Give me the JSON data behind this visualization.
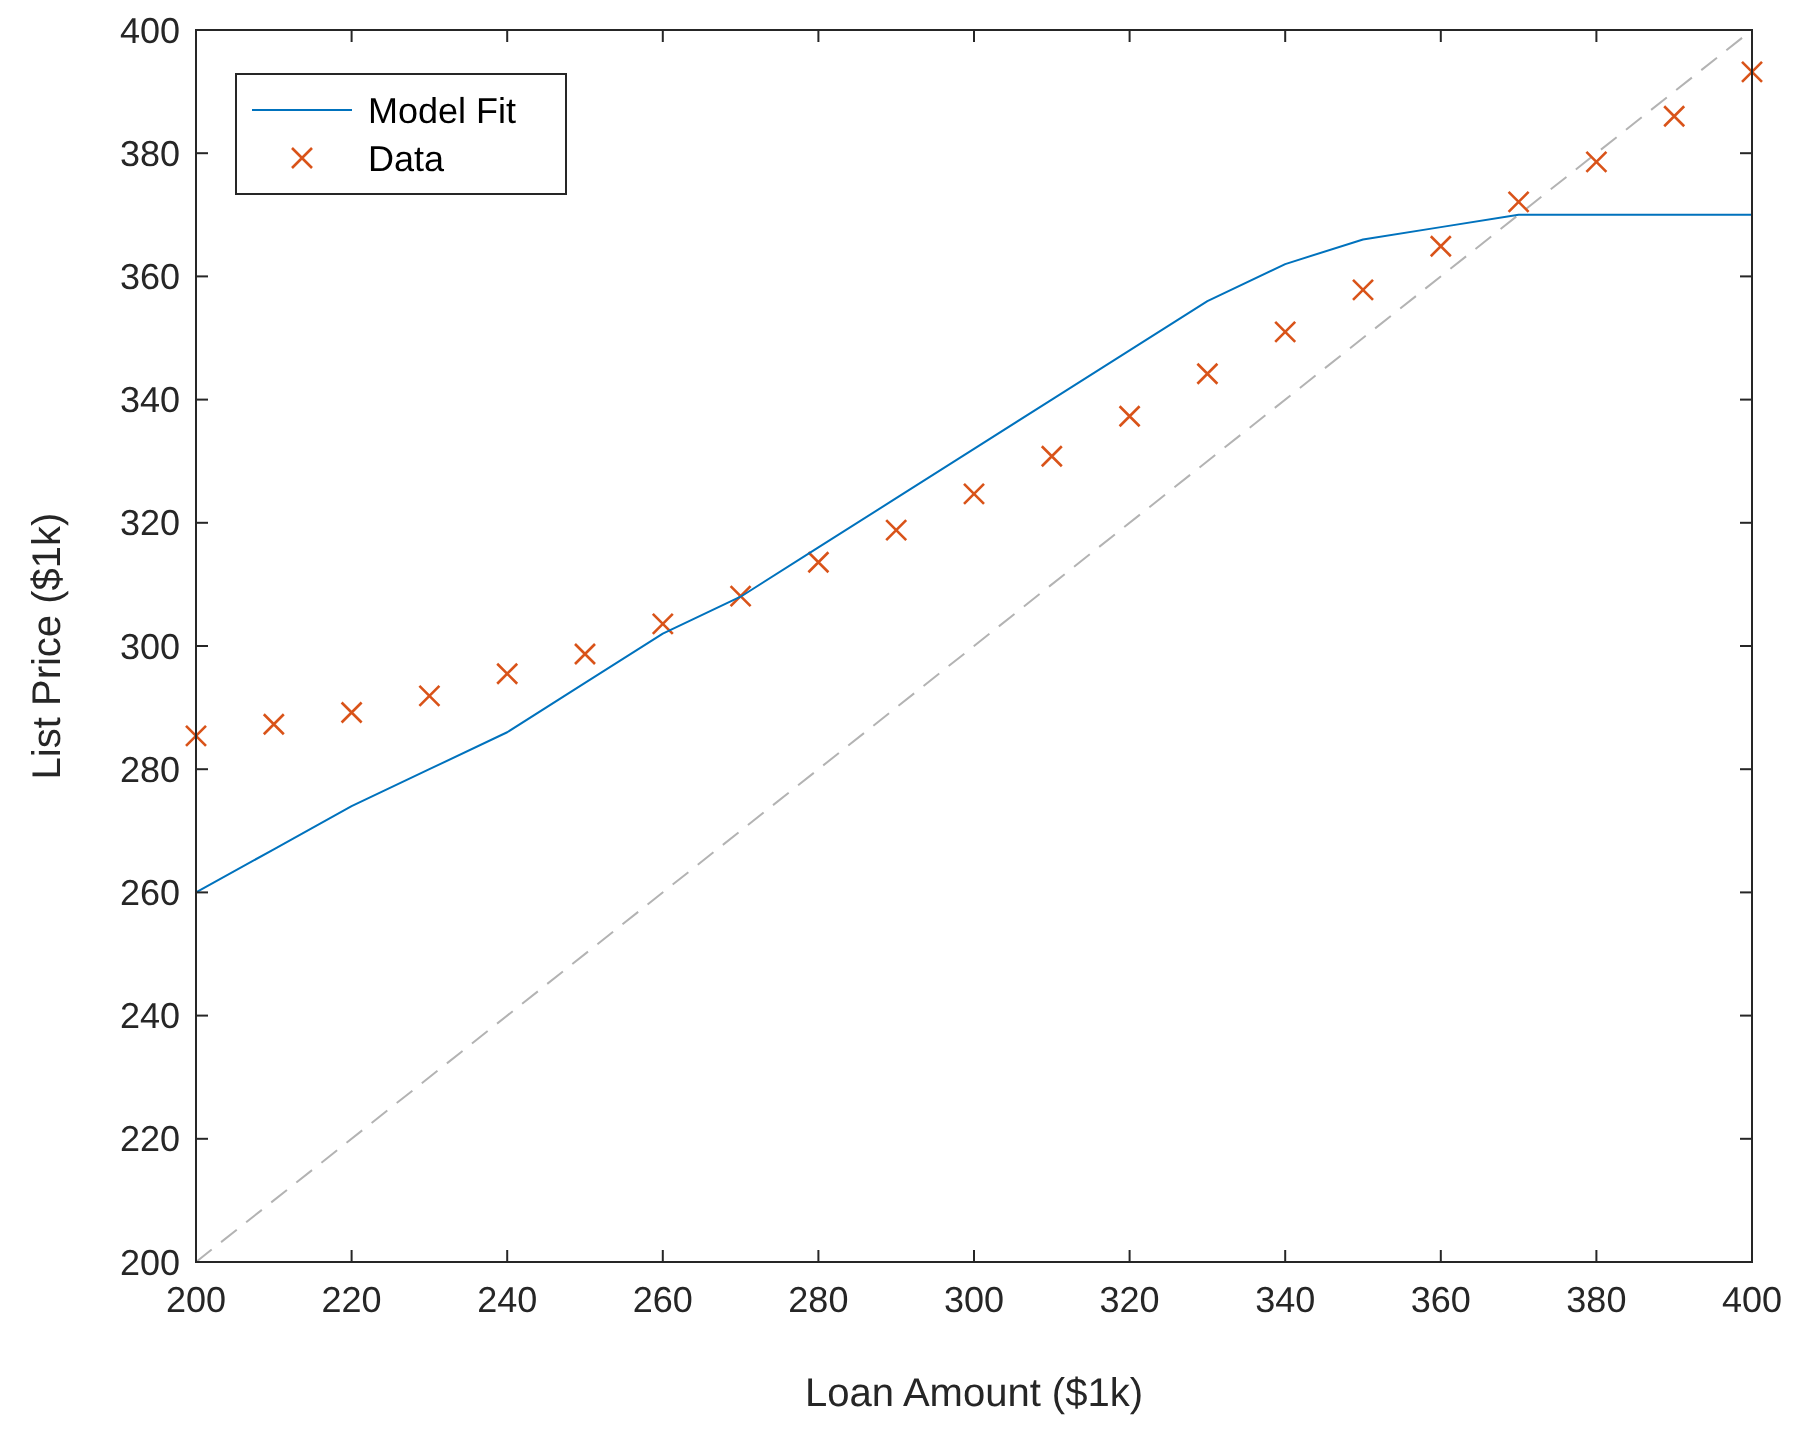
{
  "chart_data": {
    "type": "line",
    "xlabel": "Loan Amount ($1k)",
    "ylabel": "List Price ($1k)",
    "xlim": [
      200,
      400
    ],
    "xticks": [
      200,
      220,
      240,
      260,
      280,
      300,
      320,
      340,
      360,
      380,
      400
    ],
    "ylim": [
      200,
      400
    ],
    "yticks": [
      200,
      220,
      240,
      260,
      280,
      300,
      320,
      340,
      360,
      380,
      400
    ],
    "legend": "top left",
    "grid": false,
    "x": [
      200,
      210,
      220,
      230,
      240,
      250,
      260,
      270,
      280,
      290,
      300,
      310,
      320,
      330,
      340,
      350,
      360,
      370,
      380,
      390,
      400
    ],
    "series": [
      {
        "name": "Model Fit",
        "color": "#0072bd",
        "line_style": "solid",
        "values": [
          260,
          267,
          274,
          280,
          286,
          294,
          302,
          308,
          316,
          324,
          332,
          340,
          348,
          356,
          362,
          366,
          368,
          370,
          370,
          370,
          370
        ]
      },
      {
        "type": "scatter",
        "name": "Data",
        "color": "#d95319",
        "marker": "cross",
        "values": [
          285.4,
          287.3,
          289.2,
          291.9,
          295.5,
          298.7,
          303.6,
          308.1,
          313.6,
          318.8,
          324.7,
          330.8,
          337.3,
          344.2,
          351,
          357.8,
          364.9,
          372.1,
          378.6,
          386,
          393.2
        ]
      },
      {
        "color": "#b3b3b3",
        "line_style": "dashed",
        "x": [
          200,
          400
        ],
        "values": [
          200,
          400
        ]
      }
    ]
  }
}
